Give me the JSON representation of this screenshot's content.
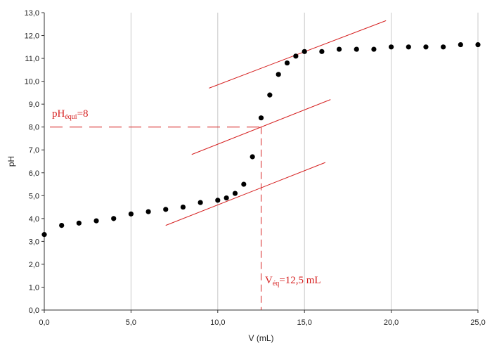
{
  "chart_data": {
    "type": "scatter",
    "title": "",
    "xlabel": "V (mL)",
    "ylabel": "pH",
    "xlim": [
      0,
      25
    ],
    "ylim": [
      0,
      13
    ],
    "x_ticks": [
      "0,0",
      "5,0",
      "10,0",
      "15,0",
      "20,0",
      "25,0"
    ],
    "y_ticks": [
      "0,0",
      "1,0",
      "2,0",
      "3,0",
      "4,0",
      "5,0",
      "6,0",
      "7,0",
      "8,0",
      "9,0",
      "10,0",
      "11,0",
      "12,0",
      "13,0"
    ],
    "grid": "vertical",
    "colors": {
      "points": "#000000",
      "annotation": "#d62020",
      "grid": "#c8c8c8"
    },
    "points": [
      {
        "x": 0,
        "y": 3.3
      },
      {
        "x": 1,
        "y": 3.7
      },
      {
        "x": 2,
        "y": 3.8
      },
      {
        "x": 3,
        "y": 3.9
      },
      {
        "x": 4,
        "y": 4.0
      },
      {
        "x": 5,
        "y": 4.2
      },
      {
        "x": 6,
        "y": 4.3
      },
      {
        "x": 7,
        "y": 4.4
      },
      {
        "x": 8,
        "y": 4.5
      },
      {
        "x": 9,
        "y": 4.7
      },
      {
        "x": 10,
        "y": 4.8
      },
      {
        "x": 10.5,
        "y": 4.9
      },
      {
        "x": 11,
        "y": 5.1
      },
      {
        "x": 11.5,
        "y": 5.5
      },
      {
        "x": 12,
        "y": 6.7
      },
      {
        "x": 12.5,
        "y": 8.4
      },
      {
        "x": 13,
        "y": 9.4
      },
      {
        "x": 13.5,
        "y": 10.3
      },
      {
        "x": 14,
        "y": 10.8
      },
      {
        "x": 14.5,
        "y": 11.1
      },
      {
        "x": 15,
        "y": 11.3
      },
      {
        "x": 16,
        "y": 11.3
      },
      {
        "x": 17,
        "y": 11.4
      },
      {
        "x": 18,
        "y": 11.4
      },
      {
        "x": 19,
        "y": 11.4
      },
      {
        "x": 20,
        "y": 11.5
      },
      {
        "x": 21,
        "y": 11.5
      },
      {
        "x": 22,
        "y": 11.5
      },
      {
        "x": 23,
        "y": 11.5
      },
      {
        "x": 24,
        "y": 11.6
      },
      {
        "x": 25,
        "y": 11.6
      }
    ],
    "tangent_lines": [
      {
        "x1": 7.0,
        "y1": 3.7,
        "x2": 16.2,
        "y2": 6.45
      },
      {
        "x1": 8.5,
        "y1": 6.8,
        "x2": 16.5,
        "y2": 9.2
      },
      {
        "x1": 9.5,
        "y1": 9.7,
        "x2": 19.7,
        "y2": 12.65
      }
    ],
    "equivalence": {
      "x": 12.5,
      "y": 8
    },
    "annotations": {
      "ph_prefix": "pH",
      "ph_sub": "équi",
      "ph_value": "=8",
      "v_prefix": "V",
      "v_sub": "éq",
      "v_value": "=12,5 mL"
    }
  }
}
